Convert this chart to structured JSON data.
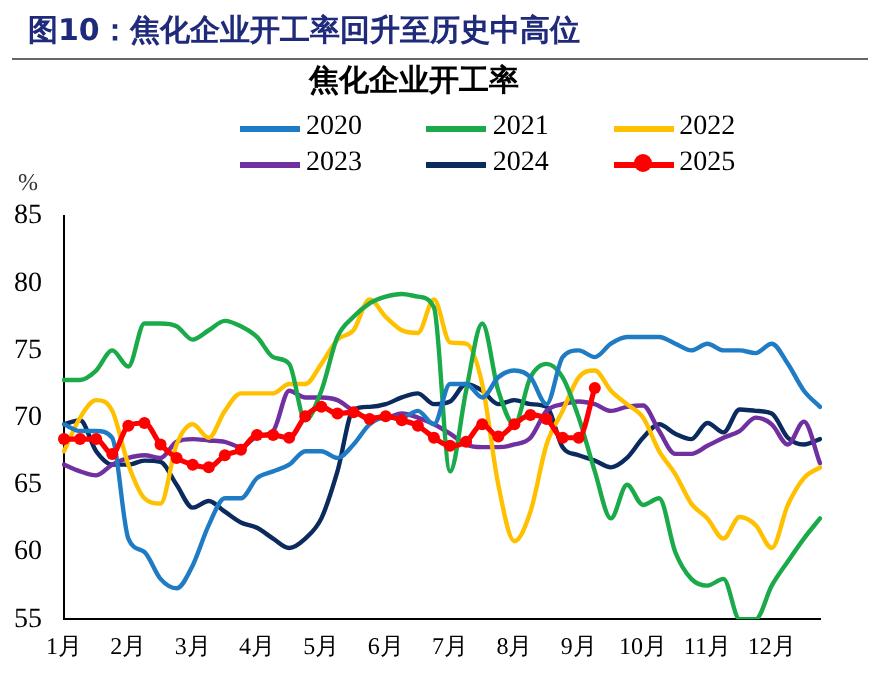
{
  "chart_data": {
    "type": "line",
    "title": "图10：焦化企业开工率回升至历史中高位",
    "subtitle": "焦化企业开工率",
    "ylabel": "%",
    "categories": [
      "1月",
      null,
      null,
      null,
      "2月",
      null,
      null,
      null,
      "3月",
      null,
      null,
      null,
      "4月",
      null,
      null,
      null,
      "5月",
      null,
      null,
      null,
      "6月",
      null,
      null,
      null,
      "7月",
      null,
      null,
      null,
      "8月",
      null,
      null,
      null,
      "9月",
      null,
      null,
      null,
      "10月",
      null,
      null,
      null,
      "11月",
      null,
      null,
      null,
      "12月",
      null,
      null,
      null
    ],
    "ylim": [
      55,
      85
    ],
    "yticks": [
      55,
      60,
      65,
      70,
      75,
      80,
      85
    ],
    "grid": false,
    "legend": "top",
    "line_style": "solid",
    "series": [
      {
        "name": "2020",
        "color": "#1f7cc4",
        "marker": "none",
        "values": [
          69.5,
          69,
          69,
          68.5,
          61,
          60,
          58,
          57.3,
          59,
          62,
          64,
          64,
          65.5,
          66,
          66.5,
          67.5,
          67.5,
          67,
          68,
          69.5,
          70,
          70,
          70.5,
          69.5,
          72.5,
          72.5,
          71.5,
          73,
          73.5,
          73,
          71,
          74.5,
          75,
          74.5,
          75.5,
          76,
          76,
          76,
          75.5,
          75,
          75.5,
          75,
          75,
          74.8,
          75.5,
          74,
          72,
          70.8
        ]
      },
      {
        "name": "2021",
        "color": "#1aaa4a",
        "marker": "none",
        "values": [
          72.8,
          72.8,
          73.5,
          75,
          73.8,
          77,
          77,
          76.8,
          75.8,
          76.5,
          77.2,
          76.8,
          76,
          74.5,
          74,
          69.8,
          72,
          76,
          77.5,
          78.5,
          79,
          79.2,
          79,
          78.2,
          66,
          72,
          77,
          72,
          69.5,
          73,
          74,
          73,
          70,
          66,
          62.5,
          65,
          63.5,
          64,
          60,
          58,
          57.5,
          58,
          55,
          55,
          57.5,
          59.3,
          61,
          62.5
        ]
      },
      {
        "name": "2022",
        "color": "#ffc000",
        "marker": "none",
        "values": [
          67.5,
          70,
          71.3,
          70.5,
          66.5,
          64,
          63.6,
          68,
          69.5,
          68.5,
          70.5,
          71.8,
          71.8,
          71.8,
          72.5,
          72.5,
          74,
          75.8,
          76.5,
          78.8,
          77.5,
          76.5,
          76.3,
          78.8,
          75.6,
          75.5,
          72.5,
          65,
          60.8,
          63,
          68,
          70.5,
          73,
          73.5,
          72,
          71,
          70,
          67.5,
          65.8,
          63.6,
          62.5,
          61,
          62.6,
          62,
          60.3,
          63.5,
          65.5,
          66.3
        ]
      },
      {
        "name": "2023",
        "color": "#7030a0",
        "marker": "none",
        "values": [
          66.5,
          66,
          65.7,
          66.5,
          67,
          67.2,
          67,
          68.2,
          68.4,
          68.3,
          68.2,
          67.8,
          68.6,
          69,
          72,
          71.5,
          71.5,
          71.3,
          70.5,
          70,
          70,
          70.3,
          70,
          69.5,
          68.8,
          68,
          67.8,
          67.8,
          68,
          68.5,
          70.5,
          71,
          71.2,
          71,
          70.5,
          70.8,
          70.9,
          69,
          67.3,
          67.3,
          67.9,
          68.5,
          69,
          70,
          69.5,
          68,
          69.7,
          66.6
        ]
      },
      {
        "name": "2024",
        "color": "#0b2a5e",
        "marker": "none",
        "values": [
          69.5,
          69.8,
          67.5,
          66.5,
          66.5,
          66.8,
          66.7,
          65,
          63.3,
          63.8,
          63,
          62.2,
          61.8,
          61,
          60.3,
          61,
          62.5,
          66,
          70.6,
          70.8,
          71,
          71.5,
          71.8,
          71,
          71.2,
          72.5,
          72,
          71,
          71.3,
          71,
          70.8,
          67.8,
          67.2,
          66.8,
          66.3,
          67,
          68.5,
          69.5,
          68.8,
          68.4,
          69.6,
          68.9,
          70.6,
          70.5,
          70.3,
          68.5,
          68,
          68.4
        ]
      },
      {
        "name": "2025",
        "color": "#ff0000",
        "marker": "circle",
        "values": [
          68.4,
          68.4,
          68.4,
          67.3,
          69.4,
          69.6,
          68,
          67,
          66.5,
          66.3,
          67.2,
          67.6,
          68.7,
          68.7,
          68.5,
          70.1,
          70.8,
          70.3,
          70.4,
          69.9,
          70.1,
          69.8,
          69.4,
          68.5,
          67.9,
          68.2,
          69.5,
          68.6,
          69.5,
          70.2,
          69.9,
          68.5,
          68.5,
          72.2,
          null,
          null,
          null,
          null,
          null,
          null,
          null,
          null,
          null,
          null,
          null,
          null,
          null,
          null
        ]
      }
    ]
  }
}
